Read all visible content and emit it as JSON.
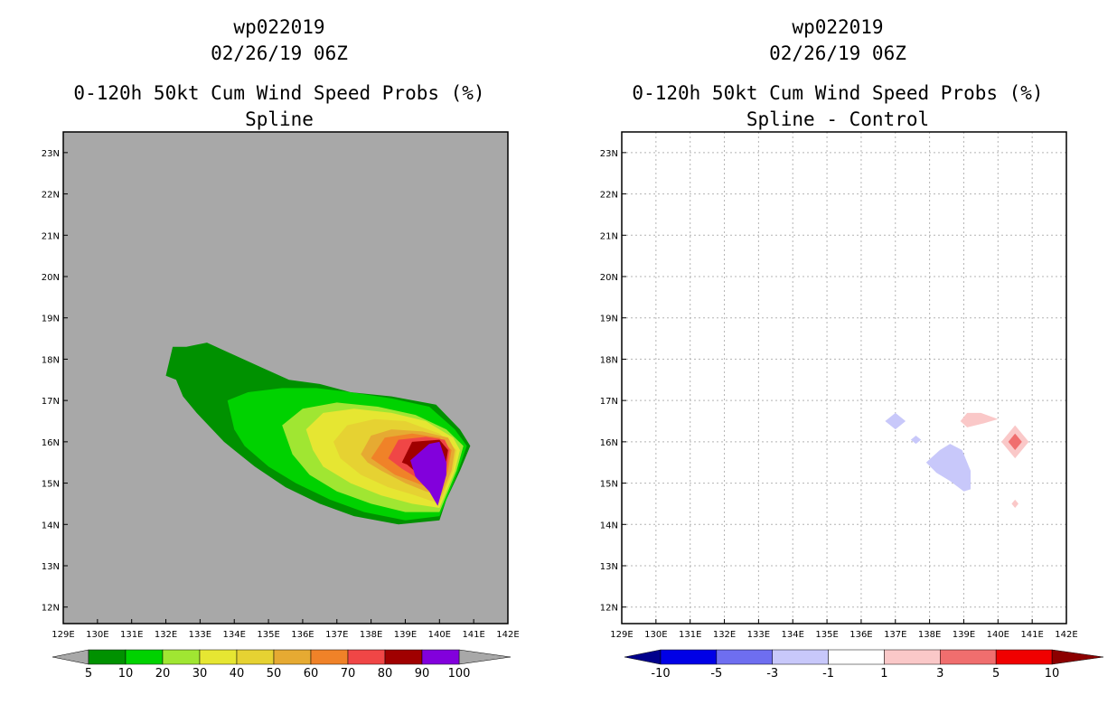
{
  "chart_data": [
    {
      "type": "heatmap",
      "title_lines": [
        "wp022019",
        "02/26/19 06Z",
        "0-120h 50kt Cum Wind Speed Probs (%)",
        "Spline"
      ],
      "background_color": "#a8a8a8",
      "grid": false,
      "x_range": [
        129,
        142
      ],
      "y_range": [
        11.6,
        23.5
      ],
      "x_ticks": [
        129,
        130,
        131,
        132,
        133,
        134,
        135,
        136,
        137,
        138,
        139,
        140,
        141,
        142
      ],
      "x_tick_labels": [
        "129E",
        "130E",
        "131E",
        "132E",
        "133E",
        "134E",
        "135E",
        "136E",
        "137E",
        "138E",
        "139E",
        "140E",
        "141E",
        "142E"
      ],
      "y_ticks": [
        12,
        13,
        14,
        15,
        16,
        17,
        18,
        19,
        20,
        21,
        22,
        23
      ],
      "y_tick_labels": [
        "12N",
        "13N",
        "14N",
        "15N",
        "16N",
        "17N",
        "18N",
        "19N",
        "20N",
        "21N",
        "22N",
        "23N"
      ],
      "legend": {
        "colors": [
          "#009100",
          "#00d200",
          "#a0e632",
          "#e6e632",
          "#e6d232",
          "#e6aa32",
          "#f08228",
          "#f04646",
          "#a00000",
          "#8200dc"
        ],
        "end_colors": [
          "#a8a8a8",
          "#a8a8a8"
        ],
        "labels": [
          "5",
          "10",
          "20",
          "30",
          "40",
          "50",
          "60",
          "70",
          "80",
          "90",
          "100"
        ]
      },
      "contours": [
        {
          "level": "5-10",
          "color": "#009100",
          "points": [
            [
              132.2,
              18.3
            ],
            [
              132.6,
              18.3
            ],
            [
              133.2,
              18.4
            ],
            [
              134,
              18.1
            ],
            [
              134.8,
              17.8
            ],
            [
              135.6,
              17.5
            ],
            [
              136.5,
              17.4
            ],
            [
              137.4,
              17.2
            ],
            [
              138.6,
              17.1
            ],
            [
              139.9,
              16.9
            ],
            [
              140.6,
              16.3
            ],
            [
              140.9,
              15.9
            ],
            [
              140.6,
              15.3
            ],
            [
              140.2,
              14.6
            ],
            [
              140,
              14.1
            ],
            [
              138.8,
              14
            ],
            [
              137.5,
              14.2
            ],
            [
              136.5,
              14.5
            ],
            [
              135.5,
              14.9
            ],
            [
              134.6,
              15.4
            ],
            [
              133.7,
              16
            ],
            [
              132.9,
              16.7
            ],
            [
              132.5,
              17.1
            ],
            [
              132.3,
              17.5
            ],
            [
              132,
              17.6
            ]
          ]
        },
        {
          "level": "10-20",
          "color": "#00d200",
          "points": [
            [
              133.8,
              17.0
            ],
            [
              134.4,
              17.2
            ],
            [
              135.4,
              17.3
            ],
            [
              136.4,
              17.3
            ],
            [
              137.4,
              17.2
            ],
            [
              138.6,
              17.05
            ],
            [
              139.7,
              16.85
            ],
            [
              140.45,
              16.3
            ],
            [
              140.8,
              15.9
            ],
            [
              140.55,
              15.3
            ],
            [
              140.2,
              14.6
            ],
            [
              140,
              14.2
            ],
            [
              139,
              14.1
            ],
            [
              137.8,
              14.3
            ],
            [
              136.8,
              14.6
            ],
            [
              135.8,
              15
            ],
            [
              135,
              15.4
            ],
            [
              134.3,
              15.9
            ],
            [
              134,
              16.3
            ]
          ]
        },
        {
          "level": "20-30",
          "color": "#a0e632",
          "points": [
            [
              135.4,
              16.4
            ],
            [
              136,
              16.8
            ],
            [
              137,
              16.95
            ],
            [
              138.2,
              16.85
            ],
            [
              139.3,
              16.65
            ],
            [
              140.2,
              16.3
            ],
            [
              140.7,
              15.9
            ],
            [
              140.5,
              15.3
            ],
            [
              140.15,
              14.6
            ],
            [
              140,
              14.3
            ],
            [
              139,
              14.3
            ],
            [
              138,
              14.5
            ],
            [
              137,
              14.8
            ],
            [
              136.2,
              15.2
            ],
            [
              135.7,
              15.7
            ]
          ]
        },
        {
          "level": "30-40",
          "color": "#e6e632",
          "points": [
            [
              136.1,
              16.3
            ],
            [
              136.6,
              16.7
            ],
            [
              137.5,
              16.8
            ],
            [
              138.6,
              16.7
            ],
            [
              139.6,
              16.5
            ],
            [
              140.4,
              16.1
            ],
            [
              140.6,
              15.8
            ],
            [
              140.45,
              15.3
            ],
            [
              140.1,
              14.6
            ],
            [
              140,
              14.4
            ],
            [
              139.2,
              14.5
            ],
            [
              138.3,
              14.7
            ],
            [
              137.4,
              15
            ],
            [
              136.6,
              15.4
            ],
            [
              136.3,
              15.8
            ]
          ]
        },
        {
          "level": "40-50",
          "color": "#e6d232",
          "points": [
            [
              136.9,
              16.0
            ],
            [
              137.3,
              16.4
            ],
            [
              138.1,
              16.55
            ],
            [
              139,
              16.5
            ],
            [
              140,
              16.2
            ],
            [
              140.5,
              15.8
            ],
            [
              140.4,
              15.3
            ],
            [
              140.05,
              14.6
            ],
            [
              140,
              14.5
            ],
            [
              139.3,
              14.7
            ],
            [
              138.5,
              14.9
            ],
            [
              137.7,
              15.2
            ],
            [
              137.1,
              15.6
            ]
          ]
        },
        {
          "level": "50-60",
          "color": "#e6aa32",
          "points": [
            [
              137.7,
              15.7
            ],
            [
              138.0,
              16.15
            ],
            [
              138.6,
              16.3
            ],
            [
              139.5,
              16.25
            ],
            [
              140.25,
              16.1
            ],
            [
              140.45,
              15.8
            ],
            [
              140.35,
              15.3
            ],
            [
              140.05,
              14.7
            ],
            [
              139.6,
              14.8
            ],
            [
              139.0,
              15
            ],
            [
              138.3,
              15.3
            ],
            [
              137.9,
              15.5
            ]
          ]
        },
        {
          "level": "60-70",
          "color": "#f08228",
          "points": [
            [
              138,
              15.6
            ],
            [
              138.4,
              16.1
            ],
            [
              139.2,
              16.2
            ],
            [
              140,
              16.1
            ],
            [
              140.35,
              15.8
            ],
            [
              140.25,
              15.3
            ],
            [
              140,
              14.75
            ],
            [
              139.5,
              14.95
            ],
            [
              138.7,
              15.2
            ]
          ]
        },
        {
          "level": "70-80",
          "color": "#f04646",
          "points": [
            [
              138.5,
              15.6
            ],
            [
              138.8,
              16.05
            ],
            [
              139.6,
              16.12
            ],
            [
              140.15,
              16.05
            ],
            [
              140.3,
              15.8
            ],
            [
              140.2,
              15.3
            ],
            [
              140,
              14.8
            ],
            [
              139.6,
              15
            ],
            [
              138.9,
              15.35
            ]
          ]
        },
        {
          "level": "80-90",
          "color": "#a00000",
          "points": [
            [
              138.9,
              15.5
            ],
            [
              139.2,
              16.0
            ],
            [
              140,
              16.05
            ],
            [
              140.25,
              15.8
            ],
            [
              140.15,
              15.3
            ],
            [
              140,
              14.85
            ],
            [
              139.55,
              15.1
            ],
            [
              139.05,
              15.45
            ]
          ]
        },
        {
          "level": "90-100",
          "color": "#8200dc",
          "points": [
            [
              139.15,
              15.55
            ],
            [
              139.7,
              15.95
            ],
            [
              140.0,
              16.0
            ],
            [
              140.2,
              15.5
            ],
            [
              140.2,
              15.2
            ],
            [
              139.95,
              14.45
            ],
            [
              139.7,
              14.8
            ],
            [
              139.3,
              15.15
            ]
          ]
        }
      ]
    },
    {
      "type": "heatmap",
      "title_lines": [
        "wp022019",
        "02/26/19 06Z",
        "0-120h 50kt Cum Wind Speed Probs (%)",
        "Spline - Control"
      ],
      "background_color": "#ffffff",
      "grid": true,
      "x_range": [
        129,
        142
      ],
      "y_range": [
        11.6,
        23.5
      ],
      "x_ticks": [
        129,
        130,
        131,
        132,
        133,
        134,
        135,
        136,
        137,
        138,
        139,
        140,
        141,
        142
      ],
      "x_tick_labels": [
        "129E",
        "130E",
        "131E",
        "132E",
        "133E",
        "134E",
        "135E",
        "136E",
        "137E",
        "138E",
        "139E",
        "140E",
        "141E",
        "142E"
      ],
      "y_ticks": [
        12,
        13,
        14,
        15,
        16,
        17,
        18,
        19,
        20,
        21,
        22,
        23
      ],
      "y_tick_labels": [
        "12N",
        "13N",
        "14N",
        "15N",
        "16N",
        "17N",
        "18N",
        "19N",
        "20N",
        "21N",
        "22N",
        "23N"
      ],
      "legend": {
        "colors": [
          "#0000e6",
          "#6e6ef0",
          "#c8c8fa",
          "#ffffff",
          "#fac8c8",
          "#f06e6e",
          "#f00000"
        ],
        "end_colors": [
          "#00008c",
          "#8c0000"
        ],
        "labels": [
          "-10",
          "-5",
          "-3",
          "-1",
          "1",
          "3",
          "5",
          "10"
        ]
      },
      "contours": [
        {
          "level": "-3 to -1",
          "color": "#c8c8fa",
          "points": [
            [
              136.7,
              16.5
            ],
            [
              137.0,
              16.7
            ],
            [
              137.3,
              16.5
            ],
            [
              137.0,
              16.3
            ]
          ]
        },
        {
          "level": "-3 to -1",
          "color": "#c8c8fa",
          "points": [
            [
              137.45,
              16.05
            ],
            [
              137.6,
              16.15
            ],
            [
              137.75,
              16.05
            ],
            [
              137.6,
              15.95
            ]
          ]
        },
        {
          "level": "-3 to -1",
          "color": "#c8c8fa",
          "points": [
            [
              137.9,
              15.5
            ],
            [
              138.3,
              15.8
            ],
            [
              138.6,
              15.95
            ],
            [
              138.95,
              15.8
            ],
            [
              139.2,
              15.3
            ],
            [
              139.2,
              14.85
            ],
            [
              139.0,
              14.8
            ],
            [
              138.6,
              15.05
            ],
            [
              138.2,
              15.25
            ]
          ]
        },
        {
          "level": "1 to 3",
          "color": "#fac8c8",
          "points": [
            [
              138.9,
              16.5
            ],
            [
              139.1,
              16.7
            ],
            [
              139.5,
              16.7
            ],
            [
              140.0,
              16.55
            ],
            [
              139.6,
              16.45
            ],
            [
              139.1,
              16.35
            ]
          ]
        },
        {
          "level": "1 to 3",
          "color": "#fac8c8",
          "points": [
            [
              140.1,
              16.0
            ],
            [
              140.5,
              16.4
            ],
            [
              140.9,
              16.0
            ],
            [
              140.5,
              15.6
            ]
          ]
        },
        {
          "level": "3 to 5",
          "color": "#f06e6e",
          "points": [
            [
              140.3,
              16.0
            ],
            [
              140.5,
              16.2
            ],
            [
              140.7,
              16.0
            ],
            [
              140.5,
              15.8
            ]
          ]
        },
        {
          "level": "1 to 3",
          "color": "#fac8c8",
          "points": [
            [
              140.4,
              14.5
            ],
            [
              140.5,
              14.6
            ],
            [
              140.6,
              14.5
            ],
            [
              140.5,
              14.4
            ]
          ]
        }
      ]
    }
  ]
}
